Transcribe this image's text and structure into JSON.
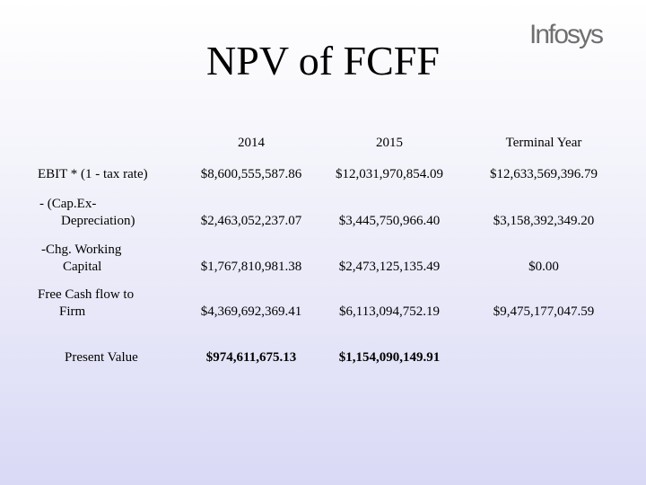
{
  "title": "NPV of FCFF",
  "logo_text": "Infosys",
  "table": {
    "headers": [
      "2014",
      "2015",
      "Terminal Year"
    ],
    "rows": [
      {
        "label_line1": "EBIT * (1 - tax rate)",
        "label_line2": "",
        "values": [
          "$8,600,555,587.86",
          "$12,031,970,854.09",
          "$12,633,569,396.79"
        ]
      },
      {
        "label_line1": "- (Cap.Ex-",
        "label_line2": "Depreciation)",
        "values": [
          "$2,463,052,237.07",
          "$3,445,750,966.40",
          "$3,158,392,349.20"
        ]
      },
      {
        "label_line1": "-Chg. Working",
        "label_line2": "Capital",
        "values": [
          "$1,767,810,981.38",
          "$2,473,125,135.49",
          "$0.00"
        ]
      },
      {
        "label_line1": "Free Cash flow to",
        "label_line2": "Firm",
        "values": [
          "$4,369,692,369.41",
          "$6,113,094,752.19",
          "$9,475,177,047.59"
        ]
      },
      {
        "label_line1": "Present Value",
        "label_line2": "",
        "values": [
          "$974,611,675.13",
          "$1,154,090,149.91",
          ""
        ]
      }
    ]
  }
}
